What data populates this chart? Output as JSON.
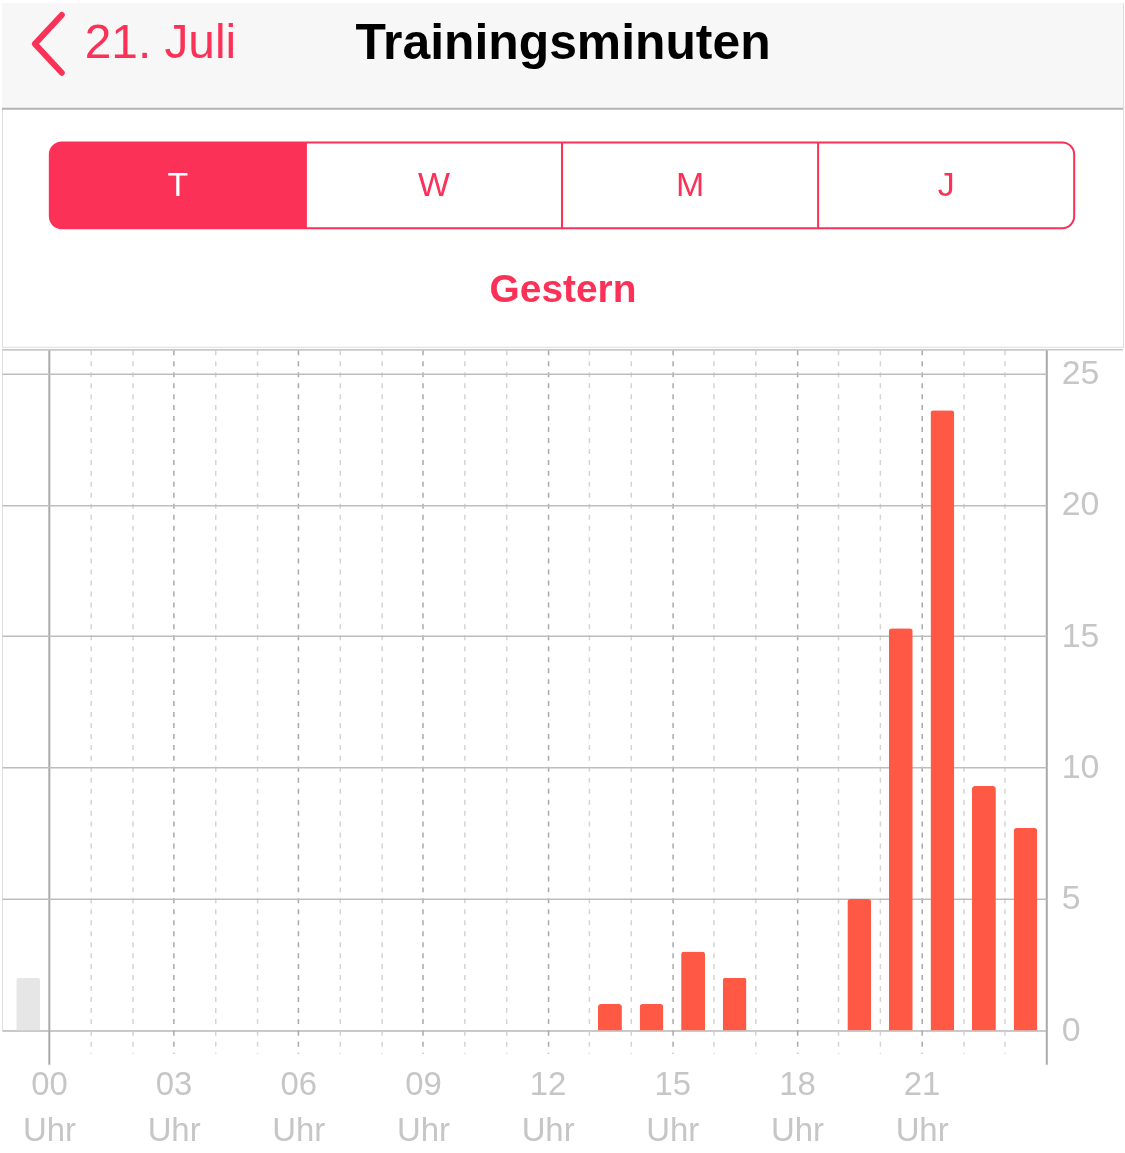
{
  "chart_data": {
    "type": "bar",
    "title": "Trainingsminuten",
    "subtitle": "Gestern",
    "annotations": [
      "21. Juli",
      "T",
      "W",
      "M",
      "J"
    ],
    "series": [
      {
        "color": "#e6e6e6",
        "x": [
          -0.5
        ],
        "values": [
          2
        ]
      },
      {
        "color": "#ff5945",
        "x": [
          13.5,
          14.5,
          15.5,
          16.5,
          19.5,
          20.5,
          21.5,
          22.5,
          23.5
        ],
        "values": [
          1,
          1,
          3,
          2,
          5,
          15.3,
          23.6,
          9.3,
          7.7
        ]
      }
    ],
    "xlim": [
      -1.13,
      24
    ],
    "xticks": [
      {
        "value": 0,
        "label": "00 Uhr"
      },
      {
        "value": 1,
        "label": null
      },
      {
        "value": 2,
        "label": null
      },
      {
        "value": 3,
        "label": "03 Uhr"
      },
      {
        "value": 4,
        "label": null
      },
      {
        "value": 5,
        "label": null
      },
      {
        "value": 6,
        "label": "06 Uhr"
      },
      {
        "value": 7,
        "label": null
      },
      {
        "value": 8,
        "label": null
      },
      {
        "value": 9,
        "label": "09 Uhr"
      },
      {
        "value": 10,
        "label": null
      },
      {
        "value": 11,
        "label": null
      },
      {
        "value": 12,
        "label": "12 Uhr"
      },
      {
        "value": 13,
        "label": null
      },
      {
        "value": 14,
        "label": null
      },
      {
        "value": 15,
        "label": "15 Uhr"
      },
      {
        "value": 16,
        "label": null
      },
      {
        "value": 17,
        "label": null
      },
      {
        "value": 18,
        "label": "18 Uhr"
      },
      {
        "value": 19,
        "label": null
      },
      {
        "value": 20,
        "label": null
      },
      {
        "value": 21,
        "label": "21 Uhr"
      },
      {
        "value": 22,
        "label": null
      },
      {
        "value": 23,
        "label": null
      },
      {
        "value": 24,
        "label": null
      }
    ],
    "ylim": [
      0,
      25.9
    ],
    "yticks": [
      0,
      5,
      10,
      15,
      20,
      25
    ],
    "grid": true
  }
}
